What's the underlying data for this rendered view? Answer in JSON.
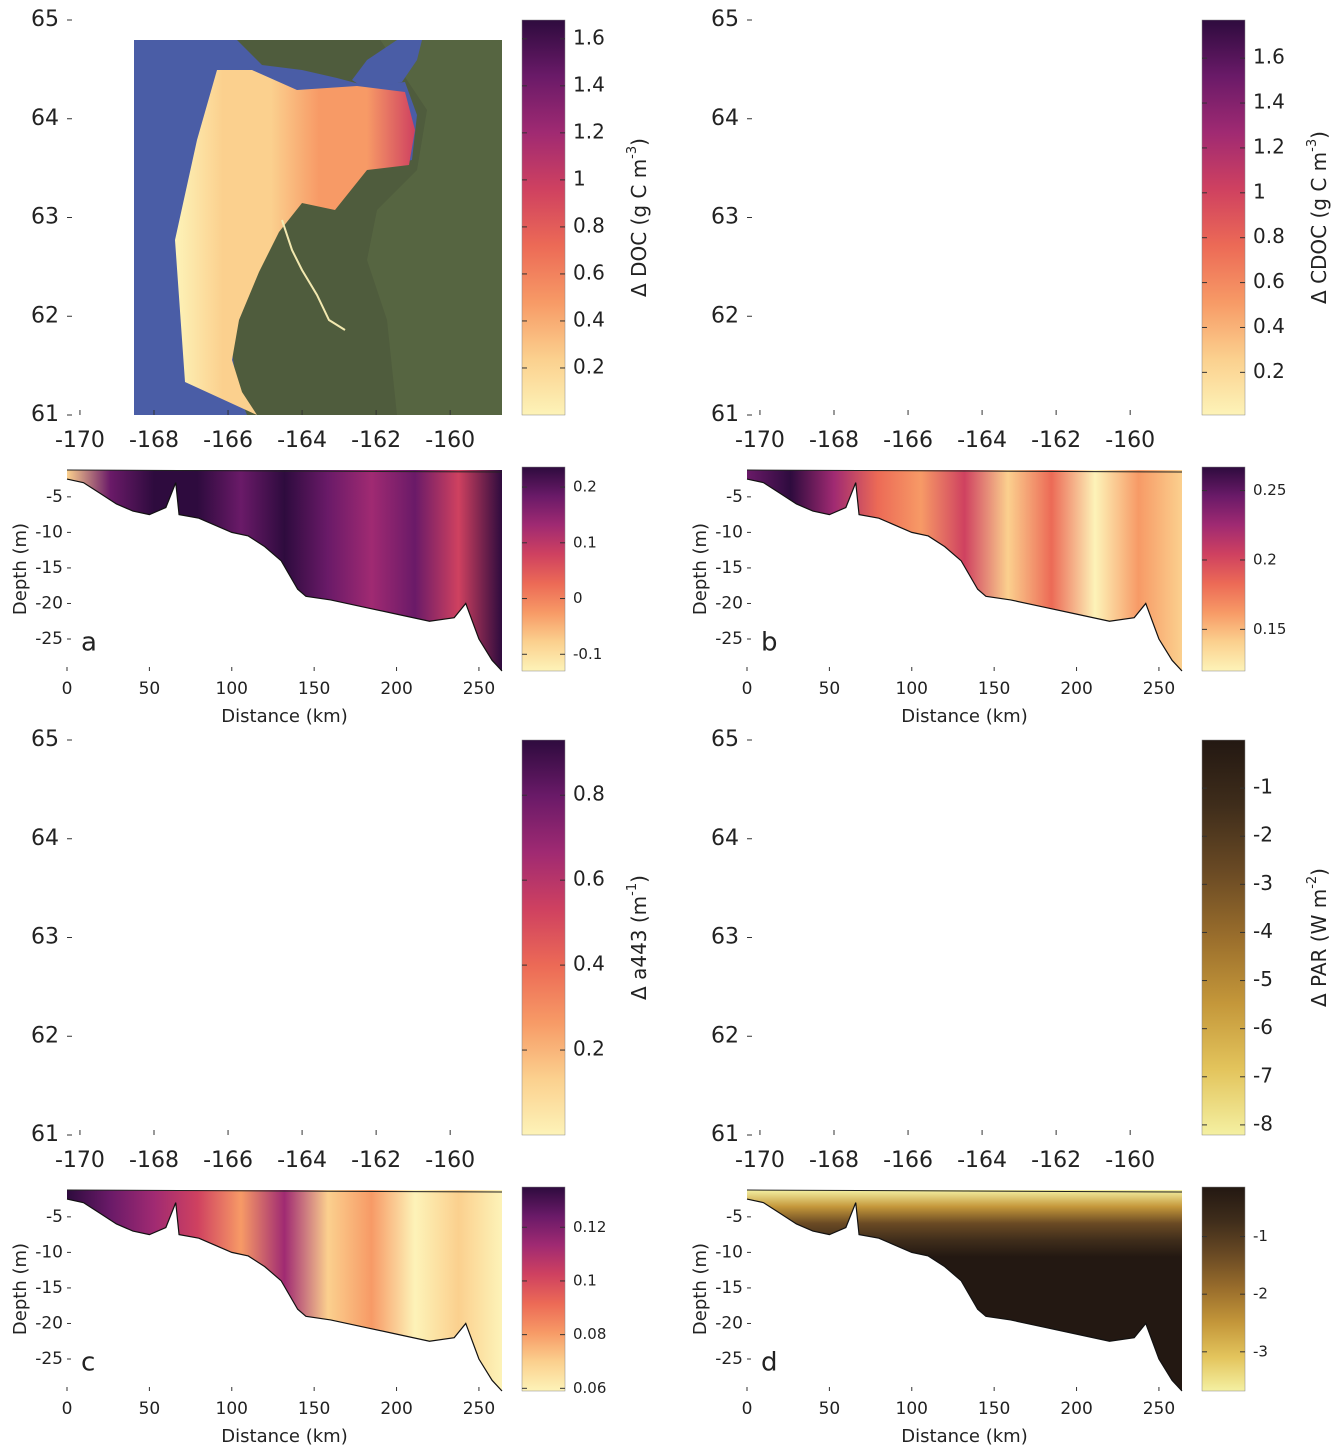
{
  "panels": [
    {
      "letter": "a",
      "map": {
        "xlim": [
          -170.35,
          -158.6
        ],
        "ylim": [
          61,
          65
        ],
        "xticks": [
          -170,
          -168,
          -166,
          -164,
          -162,
          -160
        ],
        "yticks": [
          61,
          62,
          63,
          64,
          65
        ],
        "colormap": "magma",
        "colorbar": {
          "lim": [
            0,
            1.68
          ],
          "ticks": [
            0.2,
            0.4,
            0.6,
            0.8,
            1,
            1.2,
            1.4,
            1.6
          ],
          "label": "Δ DOC (g C m",
          "label_sup": "-3",
          "label_end": ")"
        }
      },
      "transect": {
        "xlabel": "Distance (km)",
        "ylabel": "Depth (m)",
        "xlim": [
          0,
          264
        ],
        "ylim": [
          -29.5,
          -0.8
        ],
        "xticks": [
          0,
          50,
          100,
          150,
          200,
          250
        ],
        "yticks": [
          -5,
          -10,
          -15,
          -20,
          -25
        ],
        "colormap": "magma",
        "colorbar": {
          "lim": [
            -0.13,
            0.236
          ],
          "ticks": [
            -0.1,
            0,
            0.1,
            0.2
          ]
        }
      }
    },
    {
      "letter": "b",
      "map": {
        "xlim": [
          -170.35,
          -158.6
        ],
        "ylim": [
          61,
          65
        ],
        "xticks": [
          -170,
          -168,
          -166,
          -164,
          -162,
          -160
        ],
        "yticks": [
          61,
          62,
          63,
          64,
          65
        ],
        "colormap": "magma",
        "colorbar": {
          "lim": [
            0.01,
            1.77
          ],
          "ticks": [
            0.2,
            0.4,
            0.6,
            0.8,
            1,
            1.2,
            1.4,
            1.6
          ],
          "label": "Δ CDOC (g C m",
          "label_sup": "-3",
          "label_end": ")"
        }
      },
      "transect": {
        "xlabel": "Distance (km)",
        "ylabel": "Depth (m)",
        "xlim": [
          0,
          264
        ],
        "ylim": [
          -29.5,
          -0.8
        ],
        "xticks": [
          0,
          50,
          100,
          150,
          200,
          250
        ],
        "yticks": [
          -5,
          -10,
          -15,
          -20,
          -25
        ],
        "colormap": "magma",
        "colorbar": {
          "lim": [
            0.12,
            0.267
          ],
          "ticks": [
            0.15,
            0.2,
            0.25
          ]
        }
      }
    },
    {
      "letter": "c",
      "map": {
        "xlim": [
          -170.35,
          -158.6
        ],
        "ylim": [
          61,
          65
        ],
        "xticks": [
          -170,
          -168,
          -166,
          -164,
          -162,
          -160
        ],
        "yticks": [
          61,
          62,
          63,
          64,
          65
        ],
        "colormap": "magma",
        "colorbar": {
          "lim": [
            0,
            0.93
          ],
          "ticks": [
            0.2,
            0.4,
            0.6,
            0.8
          ],
          "label": "Δ a443 (m",
          "label_sup": "-1",
          "label_end": ")"
        }
      },
      "transect": {
        "xlabel": "Distance (km)",
        "ylabel": "Depth (m)",
        "xlim": [
          0,
          264
        ],
        "ylim": [
          -29.5,
          -0.8
        ],
        "xticks": [
          0,
          50,
          100,
          150,
          200,
          250
        ],
        "yticks": [
          -5,
          -10,
          -15,
          -20,
          -25
        ],
        "colormap": "magma",
        "colorbar": {
          "lim": [
            0.059,
            0.135
          ],
          "ticks": [
            0.06,
            0.08,
            0.1,
            0.12
          ]
        }
      }
    },
    {
      "letter": "d",
      "map": {
        "xlim": [
          -170.35,
          -158.6
        ],
        "ylim": [
          61,
          65
        ],
        "xticks": [
          -170,
          -168,
          -166,
          -164,
          -162,
          -160
        ],
        "yticks": [
          61,
          62,
          63,
          64,
          65
        ],
        "colormap": "par",
        "colorbar": {
          "lim": [
            -8.21,
            0
          ],
          "ticks": [
            -1,
            -2,
            -3,
            -4,
            -5,
            -6,
            -7,
            -8
          ],
          "label": "Δ PAR (W m",
          "label_sup": "-2",
          "label_end": ")"
        }
      },
      "transect": {
        "xlabel": "Distance (km)",
        "ylabel": "Depth (m)",
        "xlim": [
          0,
          264
        ],
        "ylim": [
          -29.5,
          -0.8
        ],
        "xticks": [
          0,
          50,
          100,
          150,
          200,
          250
        ],
        "yticks": [
          -5,
          -10,
          -15,
          -20,
          -25
        ],
        "colormap": "par",
        "colorbar": {
          "lim": [
            -3.68,
            -0.14
          ],
          "ticks": [
            -1,
            -2,
            -3
          ]
        }
      }
    }
  ],
  "colormaps": {
    "magma": [
      "#fdf3b8",
      "#fbd08e",
      "#f79a66",
      "#ec6a56",
      "#cf4160",
      "#a02a72",
      "#6a1a68",
      "#2e0b3e"
    ],
    "par": [
      "#f4f0a2",
      "#e3c45c",
      "#c4973a",
      "#9a6e2c",
      "#6a4a24",
      "#3f2d1b",
      "#231812"
    ]
  },
  "seafloor": {
    "distance": [
      0,
      10,
      20,
      30,
      40,
      50,
      60,
      66,
      68,
      80,
      90,
      100,
      110,
      120,
      130,
      140,
      145,
      160,
      180,
      200,
      220,
      235,
      242,
      250,
      258,
      264
    ],
    "depth": [
      -2.5,
      -3,
      -4.5,
      -6,
      -7,
      -7.5,
      -6.5,
      -3,
      -7.5,
      -8,
      -9,
      -10,
      -10.5,
      -12,
      -14,
      -18,
      -19,
      -19.5,
      -20.5,
      -21.5,
      -22.5,
      -22,
      -20,
      -25,
      -28,
      -29.5
    ]
  }
}
